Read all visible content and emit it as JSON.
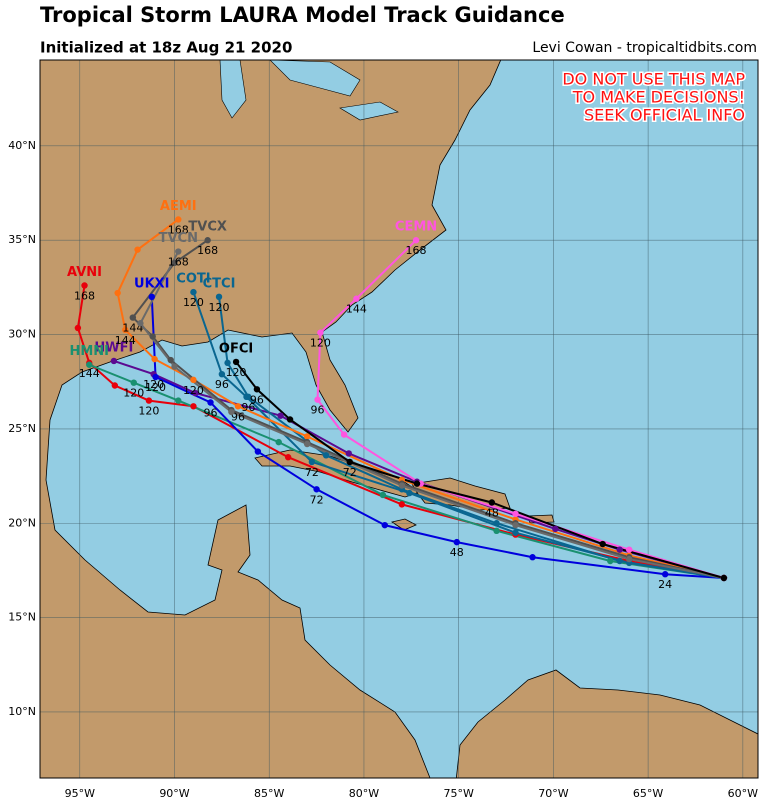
{
  "map": {
    "title": "Tropical Storm LAURA Model Track Guidance",
    "subtitle": "Initialized at 18z Aug 21 2020",
    "credit": "Levi Cowan - tropicaltidbits.com",
    "warning": [
      "DO NOT USE THIS MAP",
      "TO MAKE DECISIONS!",
      "SEEK OFFICIAL INFO"
    ],
    "xlim": [
      -97.1,
      -59.2
    ],
    "ylim": [
      6.5,
      44.55
    ],
    "xticks": [
      {
        "value": -95,
        "label": "95°W"
      },
      {
        "value": -90,
        "label": "90°W"
      },
      {
        "value": -85,
        "label": "85°W"
      },
      {
        "value": -80,
        "label": "80°W"
      },
      {
        "value": -75,
        "label": "75°W"
      },
      {
        "value": -70,
        "label": "70°W"
      },
      {
        "value": -65,
        "label": "65°W"
      },
      {
        "value": -60,
        "label": "60°W"
      }
    ],
    "yticks": [
      {
        "value": 10,
        "label": "10°N"
      },
      {
        "value": 15,
        "label": "15°N"
      },
      {
        "value": 20,
        "label": "20°N"
      },
      {
        "value": 25,
        "label": "25°N"
      },
      {
        "value": 30,
        "label": "30°N"
      },
      {
        "value": 35,
        "label": "35°N"
      },
      {
        "value": 40,
        "label": "40°N"
      }
    ],
    "tracks": [
      {
        "name": "AVNI",
        "color": "#e8000b",
        "points": [
          [
            -61,
            17.1
          ],
          [
            -66,
            18.0
          ],
          [
            -72,
            19.4
          ],
          [
            -78,
            21.0
          ],
          [
            -84,
            23.5
          ],
          [
            -89,
            26.2
          ],
          [
            -91.35,
            26.5
          ],
          [
            -93.15,
            27.3
          ],
          [
            -94.5,
            28.5
          ],
          [
            -95.1,
            30.35
          ],
          [
            -94.75,
            32.6
          ]
        ],
        "hours": [
          null,
          null,
          null,
          null,
          null,
          null,
          120,
          null,
          144,
          null,
          168
        ]
      },
      {
        "name": "HWFI",
        "color": "#5b0a91",
        "points": [
          [
            -61,
            17.1
          ],
          [
            -66.5,
            18.6
          ],
          [
            -69.9,
            19.7
          ],
          [
            -77.2,
            22.2
          ],
          [
            -80.8,
            23.7
          ],
          [
            -84.4,
            25.7
          ],
          [
            -88.9,
            26.9
          ],
          [
            -91.1,
            27.9
          ],
          [
            -93.2,
            28.6
          ]
        ],
        "hours": [
          null,
          null,
          null,
          null,
          null,
          null,
          null,
          120,
          null
        ]
      },
      {
        "name": "HMNI",
        "color": "#1a9070",
        "points": [
          [
            -61,
            17.1
          ],
          [
            -67,
            18.0
          ],
          [
            -73,
            19.6
          ],
          [
            -79,
            21.5
          ],
          [
            -84.5,
            24.3
          ],
          [
            -89.8,
            26.5
          ],
          [
            -92.15,
            27.45
          ],
          [
            -94.5,
            28.4
          ]
        ],
        "hours": [
          null,
          null,
          null,
          null,
          null,
          null,
          120,
          null
        ]
      },
      {
        "name": "UKXI",
        "color": "#0000dd",
        "points": [
          [
            -61,
            17.1
          ],
          [
            -64.1,
            17.3
          ],
          [
            -71.1,
            18.2
          ],
          [
            -75.1,
            19.0
          ],
          [
            -78.9,
            19.9
          ],
          [
            -82.5,
            21.8
          ],
          [
            -85.6,
            23.8
          ],
          [
            -88.1,
            26.4
          ],
          [
            -91.0,
            27.75
          ],
          [
            -91.2,
            32.0
          ]
        ],
        "hours": [
          null,
          24,
          null,
          48,
          null,
          72,
          null,
          96,
          120,
          null
        ]
      },
      {
        "name": "COTI",
        "color": "#0a6690",
        "points": [
          [
            -61,
            17.1
          ],
          [
            -66,
            17.9
          ],
          [
            -72,
            19.5
          ],
          [
            -77.6,
            21.6
          ],
          [
            -82.75,
            23.25
          ],
          [
            -86.2,
            26.7
          ],
          [
            -87.5,
            27.9
          ],
          [
            -89.0,
            32.25
          ]
        ],
        "hours": [
          null,
          null,
          null,
          null,
          72,
          null,
          96,
          120
        ]
      },
      {
        "name": "CTCI",
        "color": "#0a6690",
        "points": [
          [
            -61,
            17.1
          ],
          [
            -66.5,
            18.0
          ],
          [
            -73,
            20.0
          ],
          [
            -78,
            21.8
          ],
          [
            -82,
            23.6
          ],
          [
            -86.1,
            26.7
          ],
          [
            -87.2,
            28.5
          ],
          [
            -87.65,
            32.0
          ]
        ],
        "hours": [
          null,
          null,
          null,
          null,
          null,
          96,
          null,
          120
        ]
      },
      {
        "name": "AEMI",
        "color": "#ff7010",
        "points": [
          [
            -61,
            17.1
          ],
          [
            -66,
            18.3
          ],
          [
            -72,
            20.2
          ],
          [
            -78,
            22.3
          ],
          [
            -83,
            24.6
          ],
          [
            -86.65,
            26.2
          ],
          [
            -89.0,
            27.6
          ],
          [
            -91.05,
            28.7
          ],
          [
            -92.6,
            30.25
          ],
          [
            -93.0,
            32.2
          ],
          [
            -91.95,
            34.5
          ],
          [
            -89.8,
            36.1
          ]
        ],
        "hours": [
          null,
          null,
          null,
          null,
          null,
          96,
          120,
          null,
          144,
          null,
          null,
          168
        ]
      },
      {
        "name": "TVCX",
        "color": "#505050",
        "points": [
          [
            -61,
            17.1
          ],
          [
            -66,
            18.2
          ],
          [
            -72,
            20.0
          ],
          [
            -78,
            22.1
          ],
          [
            -83,
            24.3
          ],
          [
            -87,
            26.0
          ],
          [
            -90.2,
            28.65
          ],
          [
            -91.15,
            29.9
          ],
          [
            -92.2,
            30.9
          ],
          [
            -90.0,
            33.8
          ],
          [
            -88.25,
            35.0
          ]
        ],
        "hours": [
          null,
          null,
          null,
          null,
          null,
          null,
          null,
          null,
          144,
          null,
          168
        ]
      },
      {
        "name": "TVCN",
        "color": "#6a6a6a",
        "points": [
          [
            -61,
            17.1
          ],
          [
            -66,
            18.1
          ],
          [
            -72,
            19.9
          ],
          [
            -78,
            22.0
          ],
          [
            -83,
            24.2
          ],
          [
            -87,
            25.9
          ],
          [
            -90,
            28.3
          ],
          [
            -91.8,
            30.6
          ],
          [
            -89.8,
            34.4
          ]
        ],
        "hours": [
          null,
          null,
          null,
          null,
          null,
          null,
          null,
          null,
          168
        ]
      },
      {
        "name": "CEMN",
        "color": "#ff55e0",
        "points": [
          [
            -61,
            17.1
          ],
          [
            -66,
            18.6
          ],
          [
            -72,
            20.5
          ],
          [
            -77,
            22.1
          ],
          [
            -81.05,
            24.7
          ],
          [
            -82.45,
            26.55
          ],
          [
            -82.3,
            30.1
          ],
          [
            -80.4,
            31.9
          ],
          [
            -77.25,
            35.0
          ]
        ],
        "hours": [
          null,
          null,
          null,
          null,
          null,
          96,
          120,
          144,
          168
        ]
      },
      {
        "name": "OFCI",
        "color": "#000000",
        "points": [
          [
            -61,
            17.1
          ],
          [
            -67.4,
            18.9
          ],
          [
            -73.25,
            21.1
          ],
          [
            -77.2,
            22.1
          ],
          [
            -80.75,
            23.25
          ],
          [
            -83.9,
            25.5
          ],
          [
            -85.65,
            27.1
          ],
          [
            -86.75,
            28.55
          ]
        ],
        "hours": [
          null,
          null,
          48,
          null,
          72,
          null,
          96,
          120
        ]
      }
    ]
  }
}
